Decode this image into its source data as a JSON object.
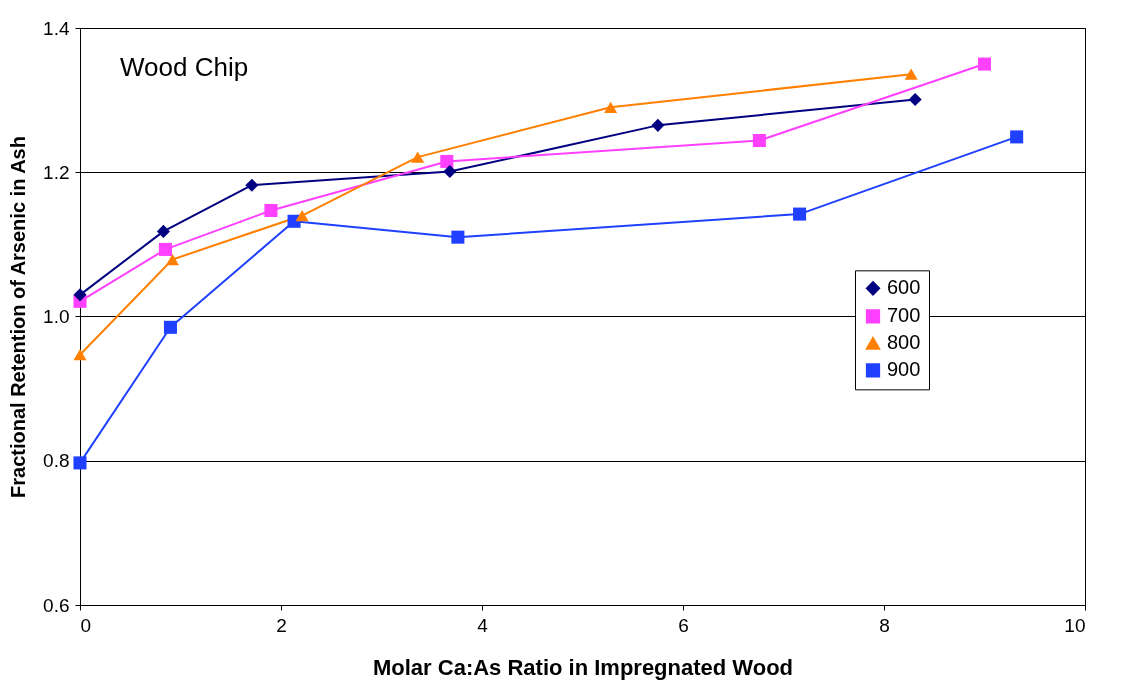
{
  "chart_data": {
    "type": "line",
    "xlabel": "Molar Ca:As Ratio in Impregnated Wood",
    "ylabel": "Fractional Retention of Arsenic in Ash",
    "annotations": [
      "Wood Chip"
    ],
    "xlim": [
      0,
      10
    ],
    "xticks": [
      0,
      2,
      4,
      6,
      8,
      10
    ],
    "ylim": [
      0.6,
      1.4
    ],
    "yticks": [
      {
        "value": 0.6,
        "label": "0.6"
      },
      {
        "value": 0.8,
        "label": "0.8"
      },
      {
        "value": 1.0,
        "label": "1.0"
      },
      {
        "value": 1.2,
        "label": "1.2"
      },
      {
        "value": 1.4,
        "label": "1.4"
      }
    ],
    "grid": "y",
    "legend": "right",
    "series": [
      {
        "name": "600",
        "color": "#000080",
        "marker": "diamond",
        "x": [
          0,
          0.83,
          1.71,
          3.68,
          5.75,
          8.31
        ],
        "values": [
          1.03,
          1.118,
          1.182,
          1.201,
          1.265,
          1.301
        ]
      },
      {
        "name": "700",
        "color": "#ff40ff",
        "marker": "square",
        "x": [
          0,
          0.85,
          1.9,
          3.65,
          6.76,
          9.0
        ],
        "values": [
          1.021,
          1.093,
          1.147,
          1.215,
          1.244,
          1.35
        ]
      },
      {
        "name": "800",
        "color": "#ff8000",
        "marker": "triangle",
        "x": [
          0,
          0.92,
          2.21,
          3.36,
          5.28,
          8.27
        ],
        "values": [
          0.947,
          1.079,
          1.14,
          1.221,
          1.29,
          1.336
        ]
      },
      {
        "name": "900",
        "color": "#2040ff",
        "marker": "square",
        "x": [
          0,
          0.9,
          2.13,
          3.76,
          7.16,
          9.32
        ],
        "values": [
          0.797,
          0.985,
          1.132,
          1.11,
          1.142,
          1.249
        ]
      }
    ]
  }
}
